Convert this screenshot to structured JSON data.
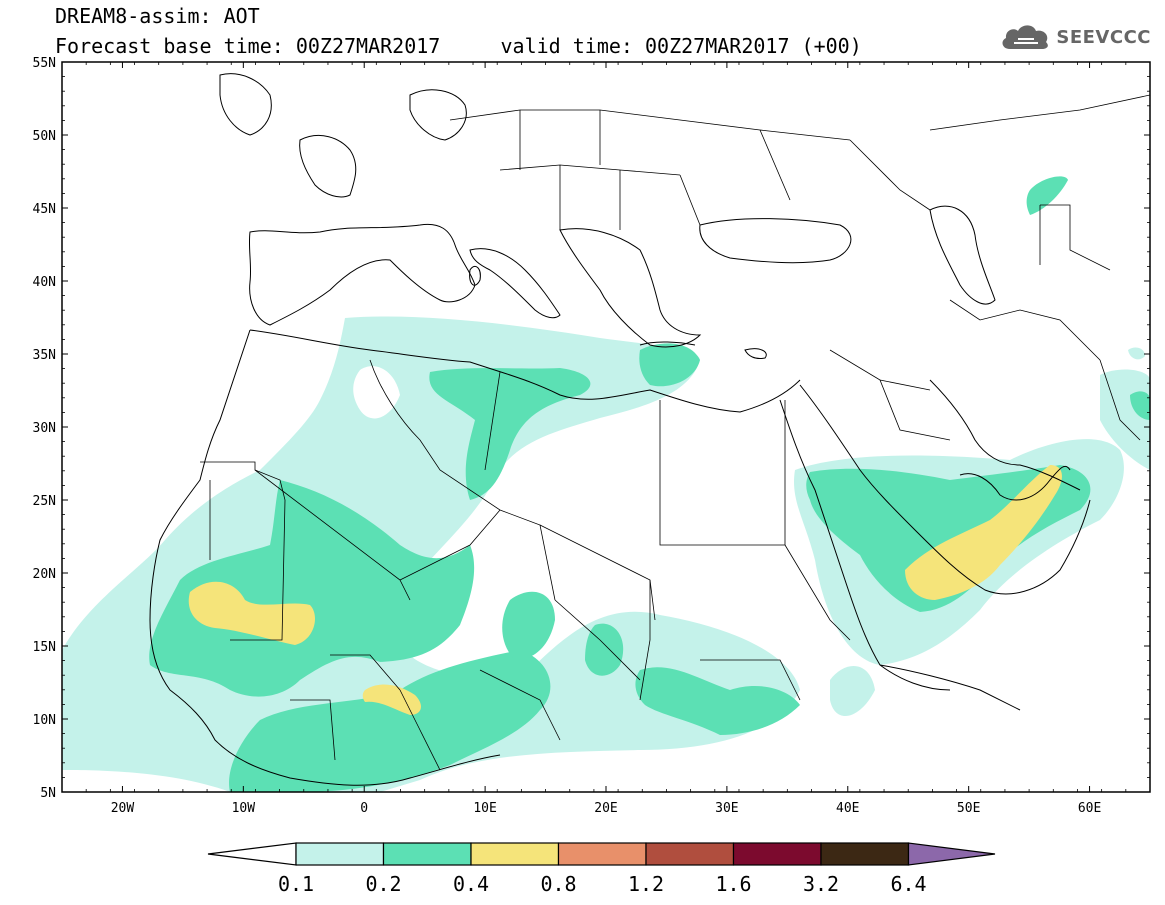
{
  "title": {
    "line1": "DREAM8-assim: AOT",
    "line2": "Forecast base time: 00Z27MAR2017     valid time: 00Z27MAR2017 (+00)"
  },
  "logo": {
    "text": "SEEVCCC",
    "icon": "cloud-icon",
    "color": "#666666"
  },
  "map": {
    "lat_labels": [
      "55N",
      "50N",
      "45N",
      "40N",
      "35N",
      "30N",
      "25N",
      "20N",
      "15N",
      "10N",
      "5N"
    ],
    "lon_labels": [
      "20W",
      "10W",
      "0",
      "10E",
      "20E",
      "30E",
      "40E",
      "50E",
      "60E"
    ],
    "lon_range": [
      -25,
      65
    ],
    "lat_range": [
      5,
      55
    ]
  },
  "colorbar": {
    "labels": [
      "0.1",
      "0.2",
      "0.4",
      "0.8",
      "1.2",
      "1.6",
      "3.2",
      "6.4"
    ],
    "colors": [
      "#ffffff",
      "#c4f2ea",
      "#5ce0b4",
      "#f5e47a",
      "#e8906a",
      "#b04e3e",
      "#7c0a2e",
      "#3c2814",
      "#8c68aa"
    ]
  },
  "fill_colors": {
    "light": "#c4f2ea",
    "medium": "#5ce0b4",
    "yellow": "#f5e47a"
  }
}
